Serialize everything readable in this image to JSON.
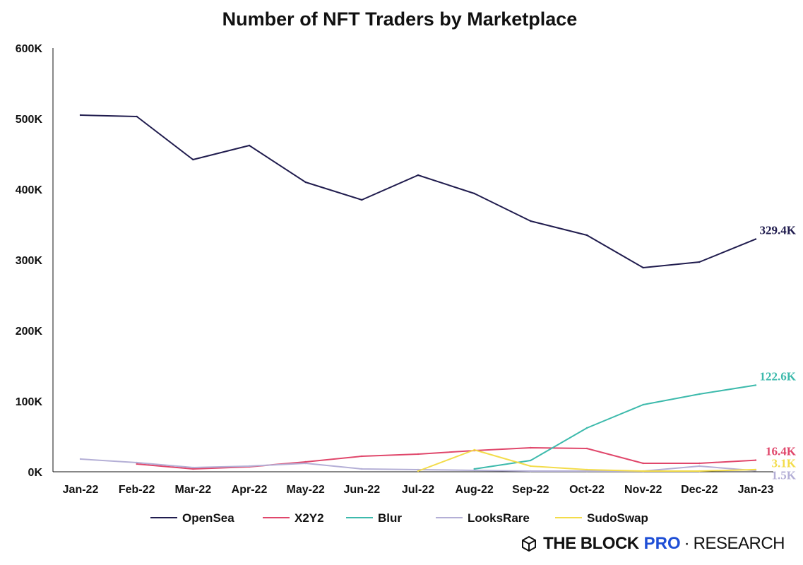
{
  "chart_data": {
    "type": "line",
    "title": "Number of NFT Traders by Marketplace",
    "xlabel": "",
    "ylabel": "",
    "ylim": [
      0,
      600000
    ],
    "yticks": [
      0,
      100000,
      200000,
      300000,
      400000,
      500000,
      600000
    ],
    "ytick_labels": [
      "0K",
      "100K",
      "200K",
      "300K",
      "400K",
      "500K",
      "600K"
    ],
    "categories": [
      "Jan-22",
      "Feb-22",
      "Mar-22",
      "Apr-22",
      "May-22",
      "Jun-22",
      "Jul-22",
      "Aug-22",
      "Sep-22",
      "Oct-22",
      "Nov-22",
      "Dec-22",
      "Jan-23"
    ],
    "legend_position": "bottom",
    "series": [
      {
        "name": "OpenSea",
        "color": "#201c4e",
        "end_label": "329.4K",
        "values": [
          505000,
          503000,
          442000,
          462000,
          410000,
          385000,
          420000,
          394000,
          355000,
          335000,
          289000,
          297000,
          329400
        ]
      },
      {
        "name": "X2Y2",
        "color": "#e0476b",
        "end_label": "16.4K",
        "values": [
          null,
          11000,
          4000,
          7000,
          14000,
          22000,
          25000,
          30000,
          34000,
          33000,
          12000,
          12000,
          16400
        ]
      },
      {
        "name": "Blur",
        "color": "#3dbaac",
        "end_label": "122.6K",
        "values": [
          null,
          null,
          null,
          null,
          null,
          null,
          null,
          4000,
          16000,
          62000,
          95000,
          110000,
          122600
        ]
      },
      {
        "name": "LooksRare",
        "color": "#b4afd6",
        "end_label": "1.5K",
        "values": [
          18000,
          13000,
          6000,
          8000,
          12000,
          4000,
          3000,
          2000,
          1000,
          1000,
          1000,
          8000,
          1500
        ]
      },
      {
        "name": "SudoSwap",
        "color": "#f3dc4a",
        "end_label": "3.1K",
        "values": [
          null,
          null,
          null,
          null,
          null,
          null,
          1000,
          31000,
          8000,
          3000,
          1000,
          1000,
          3100
        ]
      }
    ]
  },
  "brand": {
    "name": "THE BLOCK",
    "product": "PRO",
    "separator": "·",
    "section": "RESEARCH"
  }
}
